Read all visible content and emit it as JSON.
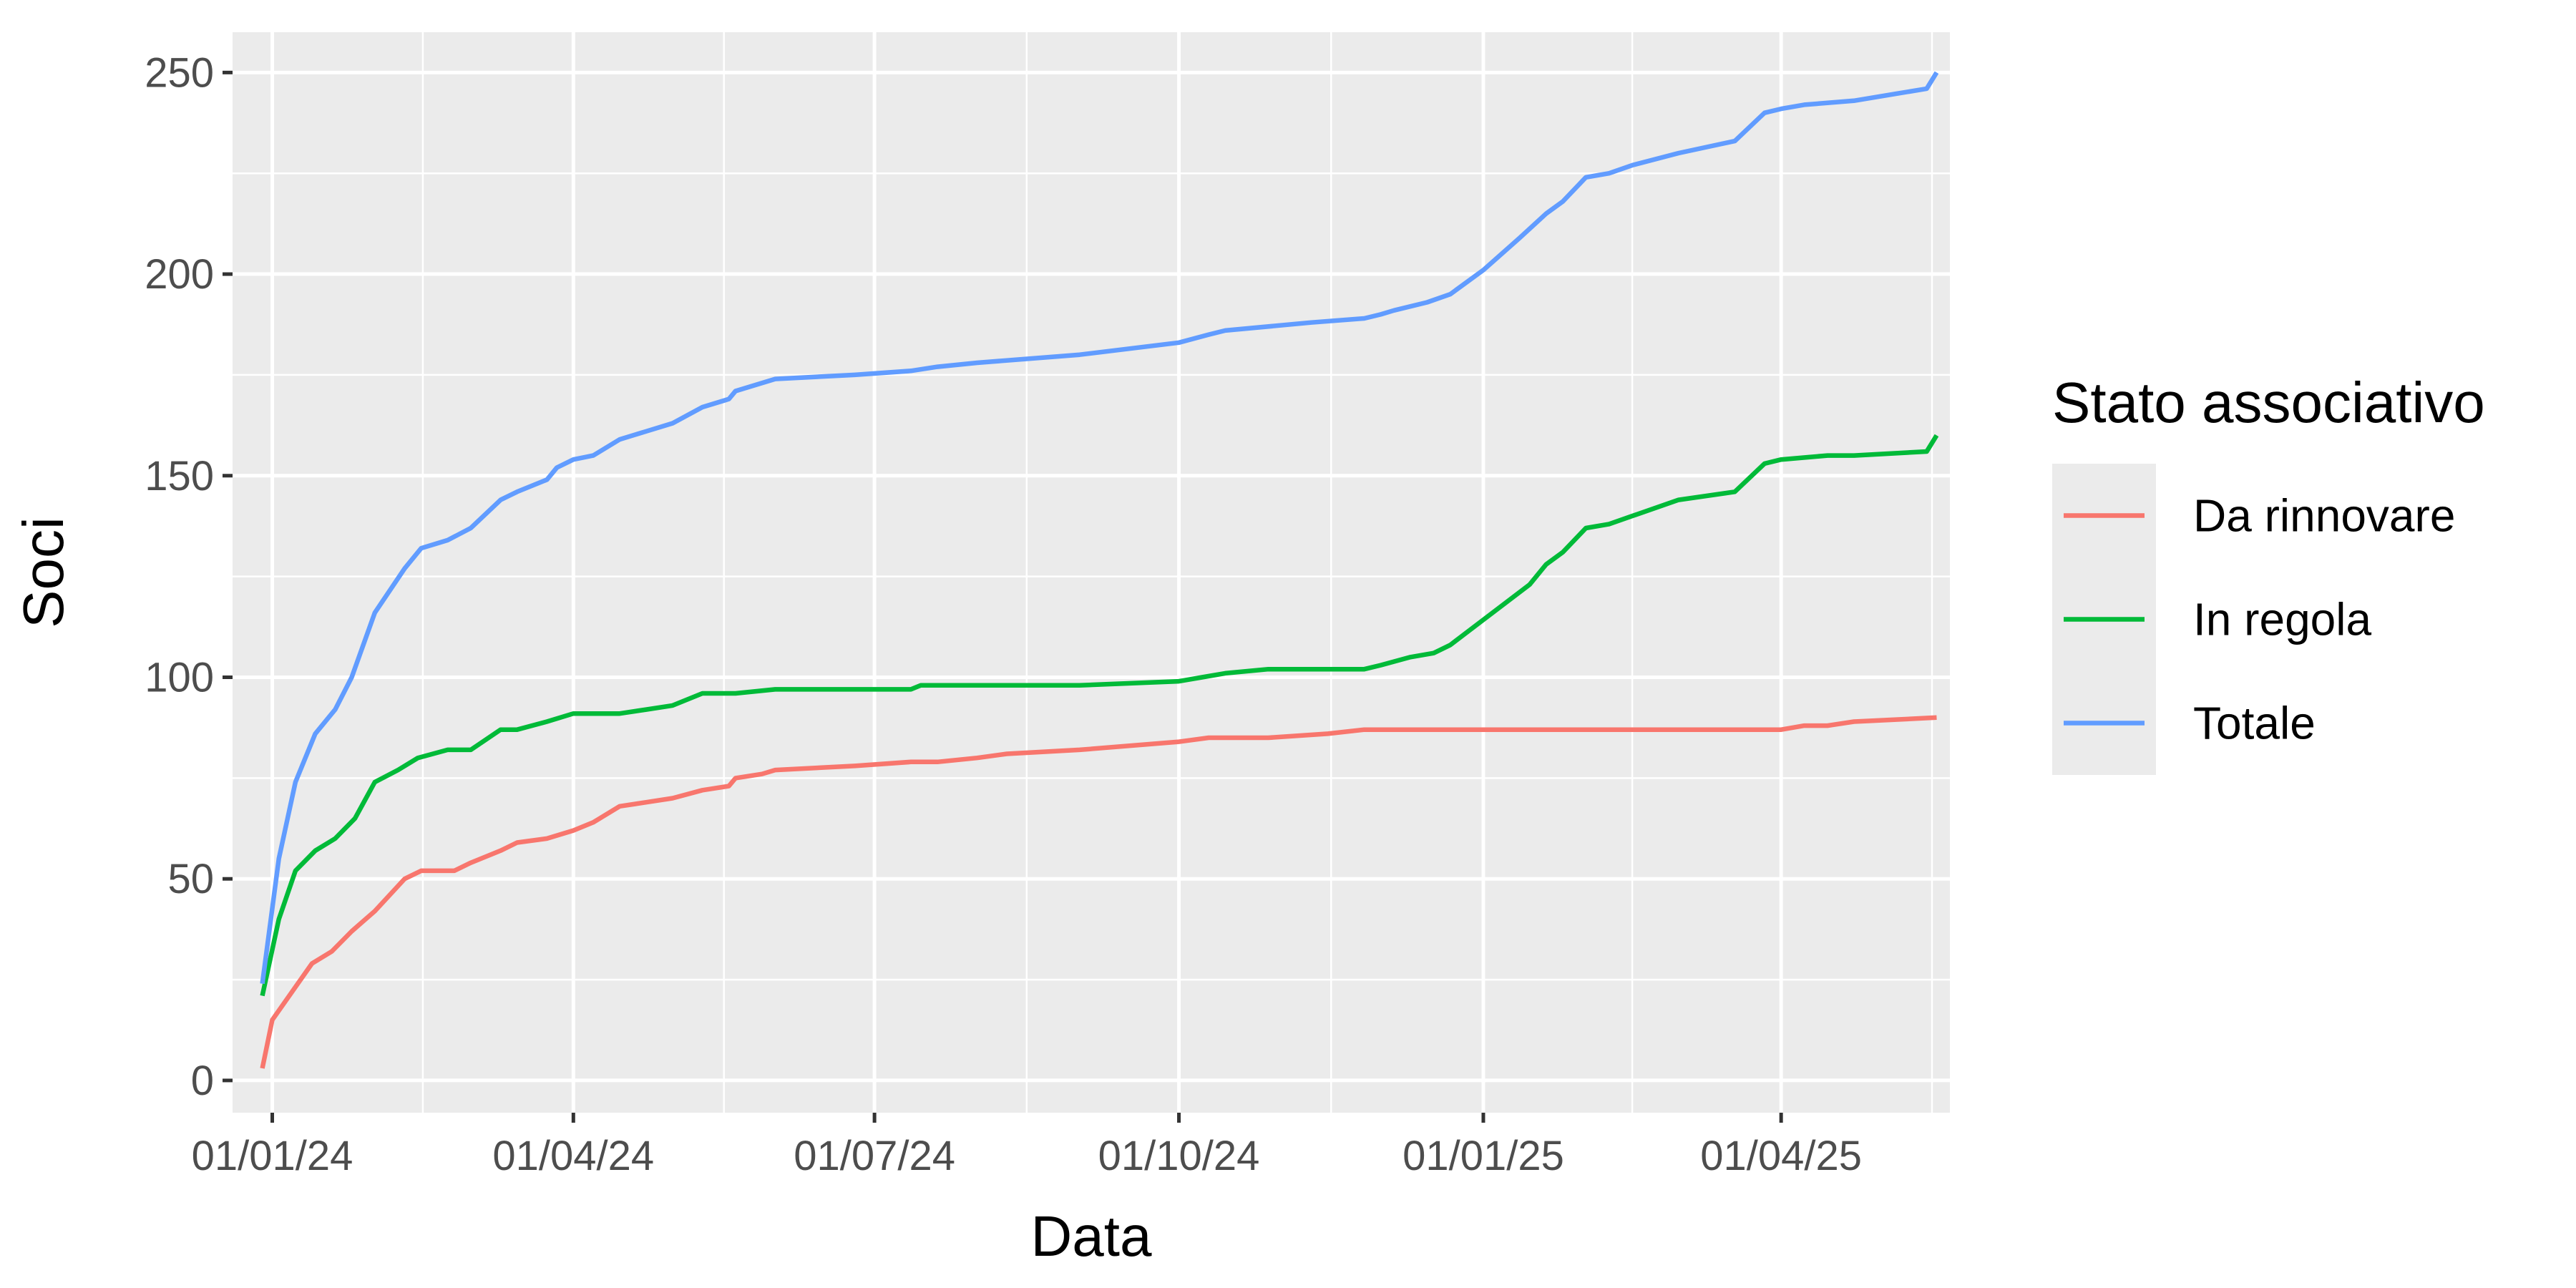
{
  "chart_data": {
    "type": "line",
    "title": "",
    "xlabel": "Data",
    "ylabel": "Soci",
    "x_format": "DD/MM/YY",
    "x_range": [
      "2023-12-20",
      "2025-05-22"
    ],
    "ylim": [
      -8,
      260
    ],
    "x_ticks": [
      {
        "date": "2024-01-01",
        "label": "01/01/24"
      },
      {
        "date": "2024-04-01",
        "label": "01/04/24"
      },
      {
        "date": "2024-07-01",
        "label": "01/07/24"
      },
      {
        "date": "2024-10-01",
        "label": "01/10/24"
      },
      {
        "date": "2025-01-01",
        "label": "01/01/25"
      },
      {
        "date": "2025-04-01",
        "label": "01/04/25"
      }
    ],
    "y_ticks": [
      0,
      50,
      100,
      150,
      200,
      250
    ],
    "grid": true,
    "background": "#ebebeb",
    "legend": {
      "title": "Stato associativo",
      "position": "right"
    },
    "series": [
      {
        "name": "Da rinnovare",
        "color": "#f8766d",
        "points": [
          [
            "2023-12-29",
            3
          ],
          [
            "2024-01-01",
            15
          ],
          [
            "2024-01-07",
            22
          ],
          [
            "2024-01-13",
            29
          ],
          [
            "2024-01-19",
            32
          ],
          [
            "2024-01-25",
            37
          ],
          [
            "2024-02-01",
            42
          ],
          [
            "2024-02-10",
            50
          ],
          [
            "2024-02-15",
            52
          ],
          [
            "2024-02-25",
            52
          ],
          [
            "2024-03-01",
            54
          ],
          [
            "2024-03-10",
            57
          ],
          [
            "2024-03-15",
            59
          ],
          [
            "2024-03-24",
            60
          ],
          [
            "2024-04-01",
            62
          ],
          [
            "2024-04-07",
            64
          ],
          [
            "2024-04-15",
            68
          ],
          [
            "2024-04-23",
            69
          ],
          [
            "2024-05-01",
            70
          ],
          [
            "2024-05-10",
            72
          ],
          [
            "2024-05-18",
            73
          ],
          [
            "2024-05-20",
            75
          ],
          [
            "2024-05-28",
            76
          ],
          [
            "2024-06-01",
            77
          ],
          [
            "2024-06-25",
            78
          ],
          [
            "2024-07-12",
            79
          ],
          [
            "2024-07-20",
            79
          ],
          [
            "2024-08-01",
            80
          ],
          [
            "2024-08-10",
            81
          ],
          [
            "2024-09-01",
            82
          ],
          [
            "2024-10-01",
            84
          ],
          [
            "2024-10-10",
            85
          ],
          [
            "2024-10-28",
            85
          ],
          [
            "2024-11-15",
            86
          ],
          [
            "2024-11-26",
            87
          ],
          [
            "2024-12-01",
            87
          ],
          [
            "2025-04-01",
            87
          ],
          [
            "2025-04-08",
            88
          ],
          [
            "2025-04-15",
            88
          ],
          [
            "2025-04-23",
            89
          ],
          [
            "2025-05-18",
            90
          ]
        ]
      },
      {
        "name": "In regola",
        "color": "#00ba38",
        "points": [
          [
            "2023-12-29",
            21
          ],
          [
            "2024-01-03",
            40
          ],
          [
            "2024-01-08",
            52
          ],
          [
            "2024-01-14",
            57
          ],
          [
            "2024-01-20",
            60
          ],
          [
            "2024-01-26",
            65
          ],
          [
            "2024-02-01",
            74
          ],
          [
            "2024-02-08",
            77
          ],
          [
            "2024-02-14",
            80
          ],
          [
            "2024-02-23",
            82
          ],
          [
            "2024-03-01",
            82
          ],
          [
            "2024-03-10",
            87
          ],
          [
            "2024-03-15",
            87
          ],
          [
            "2024-03-24",
            89
          ],
          [
            "2024-04-01",
            91
          ],
          [
            "2024-04-15",
            91
          ],
          [
            "2024-04-23",
            92
          ],
          [
            "2024-05-01",
            93
          ],
          [
            "2024-05-10",
            96
          ],
          [
            "2024-05-20",
            96
          ],
          [
            "2024-06-01",
            97
          ],
          [
            "2024-07-12",
            97
          ],
          [
            "2024-07-15",
            98
          ],
          [
            "2024-07-25",
            98
          ],
          [
            "2024-09-01",
            98
          ],
          [
            "2024-10-01",
            99
          ],
          [
            "2024-10-08",
            100
          ],
          [
            "2024-10-15",
            101
          ],
          [
            "2024-10-28",
            102
          ],
          [
            "2024-11-10",
            102
          ],
          [
            "2024-11-26",
            102
          ],
          [
            "2024-12-01",
            103
          ],
          [
            "2024-12-10",
            105
          ],
          [
            "2024-12-17",
            106
          ],
          [
            "2024-12-22",
            108
          ],
          [
            "2025-01-15",
            123
          ],
          [
            "2025-01-20",
            128
          ],
          [
            "2025-01-25",
            131
          ],
          [
            "2025-02-01",
            137
          ],
          [
            "2025-02-08",
            138
          ],
          [
            "2025-02-15",
            140
          ],
          [
            "2025-03-01",
            144
          ],
          [
            "2025-03-18",
            146
          ],
          [
            "2025-03-27",
            153
          ],
          [
            "2025-04-01",
            154
          ],
          [
            "2025-04-15",
            155
          ],
          [
            "2025-04-23",
            155
          ],
          [
            "2025-05-15",
            156
          ],
          [
            "2025-05-18",
            160
          ]
        ]
      },
      {
        "name": "Totale",
        "color": "#619cff",
        "points": [
          [
            "2023-12-29",
            24
          ],
          [
            "2024-01-03",
            55
          ],
          [
            "2024-01-08",
            74
          ],
          [
            "2024-01-14",
            86
          ],
          [
            "2024-01-20",
            92
          ],
          [
            "2024-01-25",
            100
          ],
          [
            "2024-02-01",
            116
          ],
          [
            "2024-02-10",
            127
          ],
          [
            "2024-02-15",
            132
          ],
          [
            "2024-02-23",
            134
          ],
          [
            "2024-03-01",
            137
          ],
          [
            "2024-03-10",
            144
          ],
          [
            "2024-03-15",
            146
          ],
          [
            "2024-03-24",
            149
          ],
          [
            "2024-03-27",
            152
          ],
          [
            "2024-04-01",
            154
          ],
          [
            "2024-04-07",
            155
          ],
          [
            "2024-04-15",
            159
          ],
          [
            "2024-04-23",
            161
          ],
          [
            "2024-05-01",
            163
          ],
          [
            "2024-05-10",
            167
          ],
          [
            "2024-05-18",
            169
          ],
          [
            "2024-05-20",
            171
          ],
          [
            "2024-06-01",
            174
          ],
          [
            "2024-06-25",
            175
          ],
          [
            "2024-07-12",
            176
          ],
          [
            "2024-07-20",
            177
          ],
          [
            "2024-08-01",
            178
          ],
          [
            "2024-09-01",
            180
          ],
          [
            "2024-10-01",
            183
          ],
          [
            "2024-10-10",
            185
          ],
          [
            "2024-10-15",
            186
          ],
          [
            "2024-11-10",
            188
          ],
          [
            "2024-11-26",
            189
          ],
          [
            "2024-12-01",
            190
          ],
          [
            "2024-12-05",
            191
          ],
          [
            "2024-12-15",
            193
          ],
          [
            "2024-12-22",
            195
          ],
          [
            "2025-01-01",
            201
          ],
          [
            "2025-01-12",
            209
          ],
          [
            "2025-01-20",
            215
          ],
          [
            "2025-01-25",
            218
          ],
          [
            "2025-02-01",
            224
          ],
          [
            "2025-02-08",
            225
          ],
          [
            "2025-02-15",
            227
          ],
          [
            "2025-03-01",
            230
          ],
          [
            "2025-03-18",
            233
          ],
          [
            "2025-03-27",
            240
          ],
          [
            "2025-04-01",
            241
          ],
          [
            "2025-04-08",
            242
          ],
          [
            "2025-04-23",
            243
          ],
          [
            "2025-05-15",
            246
          ],
          [
            "2025-05-18",
            250
          ]
        ]
      }
    ]
  }
}
